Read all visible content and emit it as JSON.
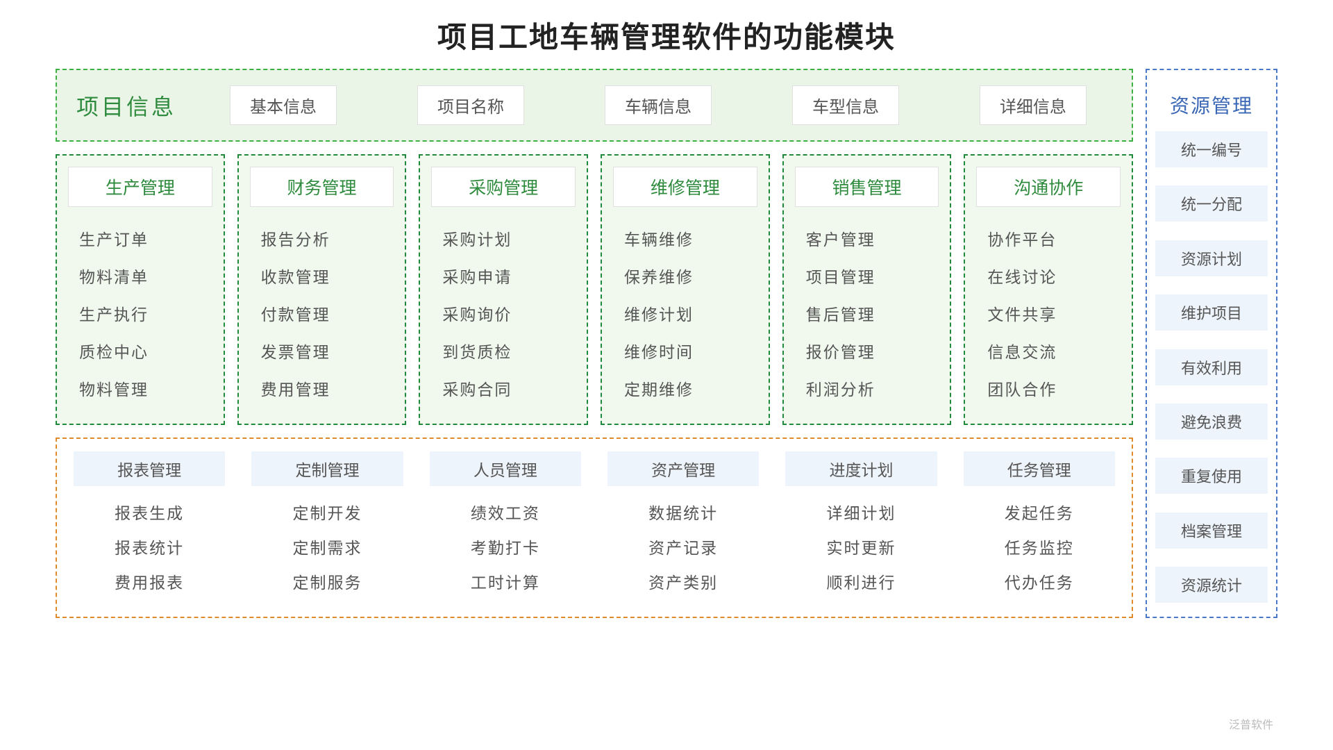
{
  "title": "项目工地车辆管理软件的功能模块",
  "colors": {
    "row1_border": "#3cb043",
    "row1_bg": "#eaf5e8",
    "row1_label_color": "#2e8b3d",
    "row2_border": "#1f8a3b",
    "row2_bg": "#f1f9ef",
    "row2_head_color": "#2e8b3d",
    "row3_border": "#e08a2c",
    "row3_chip_bg": "#eef4fb",
    "res_border": "#4a78c8",
    "res_head_color": "#3a67b5",
    "res_chip_bg": "#eef4fb",
    "title_color": "#222222",
    "text_color": "#555555",
    "chip_bg": "#ffffff",
    "chip_border": "#e0e0e0"
  },
  "row1": {
    "label": "项目信息",
    "items": [
      "基本信息",
      "项目名称",
      "车辆信息",
      "车型信息",
      "详细信息"
    ]
  },
  "modules": [
    {
      "title": "生产管理",
      "items": [
        "生产订单",
        "物料清单",
        "生产执行",
        "质检中心",
        "物料管理"
      ]
    },
    {
      "title": "财务管理",
      "items": [
        "报告分析",
        "收款管理",
        "付款管理",
        "发票管理",
        "费用管理"
      ]
    },
    {
      "title": "采购管理",
      "items": [
        "采购计划",
        "采购申请",
        "采购询价",
        "到货质检",
        "采购合同"
      ]
    },
    {
      "title": "维修管理",
      "items": [
        "车辆维修",
        "保养维修",
        "维修计划",
        "维修时间",
        "定期维修"
      ]
    },
    {
      "title": "销售管理",
      "items": [
        "客户管理",
        "项目管理",
        "售后管理",
        "报价管理",
        "利润分析"
      ]
    },
    {
      "title": "沟通协作",
      "items": [
        "协作平台",
        "在线讨论",
        "文件共享",
        "信息交流",
        "团队合作"
      ]
    }
  ],
  "bottom": [
    {
      "title": "报表管理",
      "items": [
        "报表生成",
        "报表统计",
        "费用报表"
      ]
    },
    {
      "title": "定制管理",
      "items": [
        "定制开发",
        "定制需求",
        "定制服务"
      ]
    },
    {
      "title": "人员管理",
      "items": [
        "绩效工资",
        "考勤打卡",
        "工时计算"
      ]
    },
    {
      "title": "资产管理",
      "items": [
        "数据统计",
        "资产记录",
        "资产类别"
      ]
    },
    {
      "title": "进度计划",
      "items": [
        "详细计划",
        "实时更新",
        "顺利进行"
      ]
    },
    {
      "title": "任务管理",
      "items": [
        "发起任务",
        "任务监控",
        "代办任务"
      ]
    }
  ],
  "resource": {
    "title": "资源管理",
    "items": [
      "统一编号",
      "统一分配",
      "资源计划",
      "维护项目",
      "有效利用",
      "避免浪费",
      "重复使用",
      "档案管理",
      "资源统计"
    ]
  },
  "watermark": "泛普软件"
}
